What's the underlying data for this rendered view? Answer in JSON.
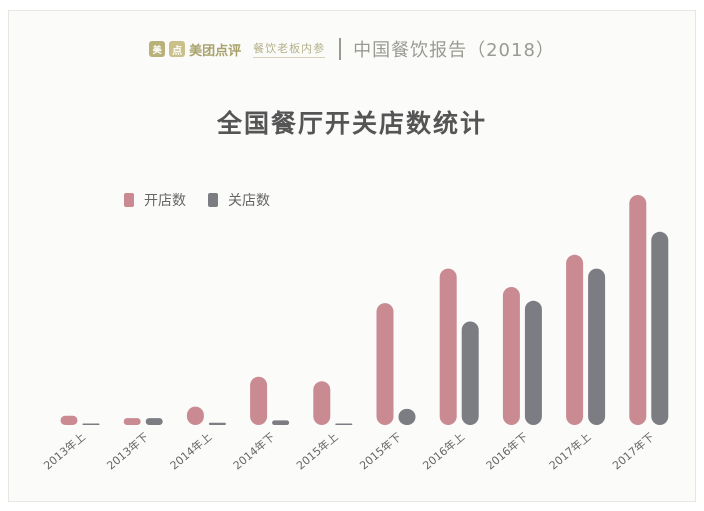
{
  "header": {
    "brand_icon_text": "美",
    "brand_icon2_text": "点",
    "brand_name": "美团点评",
    "partner": "餐饮老板内参",
    "report_title": "中国餐饮报告（2018）"
  },
  "colors": {
    "open": "#c98a91",
    "close": "#7c7c83"
  },
  "chart_data": {
    "type": "bar",
    "title": "全国餐厅开关店数统计",
    "xlabel": "",
    "ylabel": "",
    "categories": [
      "2013年上",
      "2013年下",
      "2014年上",
      "2014年下",
      "2015年上",
      "2015年下",
      "2016年上",
      "2016年下",
      "2017年上",
      "2017年下"
    ],
    "series": [
      {
        "name": "开店数",
        "values": [
          4,
          3,
          8,
          21,
          19,
          53,
          68,
          60,
          74,
          100
        ]
      },
      {
        "name": "关店数",
        "values": [
          0,
          3,
          1,
          2,
          0.5,
          7,
          45,
          54,
          68,
          84
        ]
      }
    ],
    "ylim": [
      0,
      100
    ],
    "grid": false,
    "legend_position": "top-left"
  }
}
